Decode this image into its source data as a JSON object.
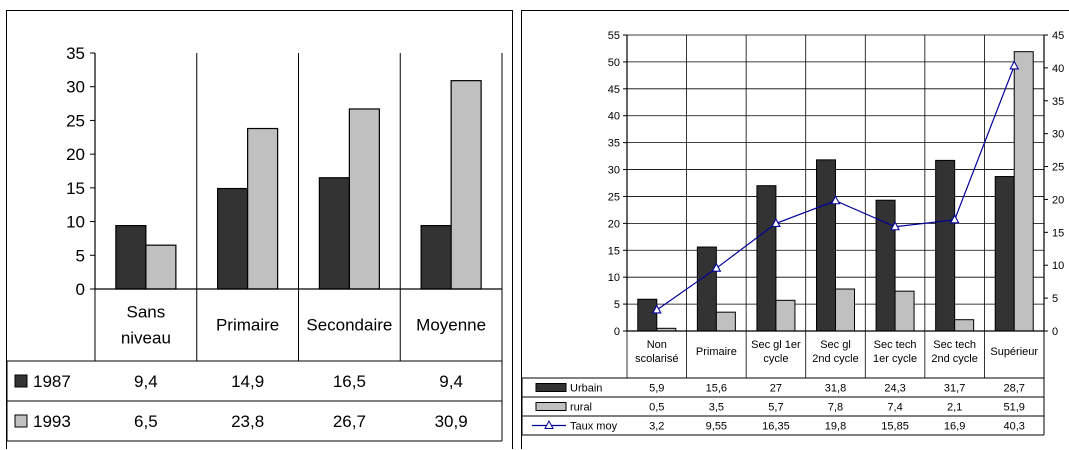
{
  "chart_data": [
    {
      "type": "bar",
      "categories": [
        [
          "Sans",
          "niveau"
        ],
        [
          "Primaire"
        ],
        [
          "Secondaire"
        ],
        [
          "Moyenne"
        ]
      ],
      "series": [
        {
          "name": "1987",
          "values": [
            9.4,
            14.9,
            16.5,
            9.4
          ],
          "labels": [
            "9,4",
            "14,9",
            "16,5",
            "9,4"
          ],
          "color": "#333333"
        },
        {
          "name": "1993",
          "values": [
            6.5,
            23.8,
            26.7,
            30.9
          ],
          "labels": [
            "6,5",
            "23,8",
            "26,7",
            "30,9"
          ],
          "color": "#c0c0c0"
        }
      ],
      "ylim": [
        0,
        35
      ],
      "yticks": [
        0,
        5,
        10,
        15,
        20,
        25,
        30,
        35
      ],
      "grid": false,
      "legend": "data-table"
    },
    {
      "type": "bar",
      "categories": [
        [
          "Non",
          "scolarisé"
        ],
        [
          "Primaire"
        ],
        [
          "Sec gl 1er",
          "cycle"
        ],
        [
          "Sec gl",
          "2nd cycle"
        ],
        [
          "Sec tech",
          "1er cycle"
        ],
        [
          "Sec tech",
          "2nd cycle"
        ],
        [
          "Supérieur"
        ]
      ],
      "series": [
        {
          "name": "Urbain",
          "kind": "bar",
          "axis": "left",
          "values": [
            5.9,
            15.6,
            27,
            31.8,
            24.3,
            31.7,
            28.7
          ],
          "labels": [
            "5,9",
            "15,6",
            "27",
            "31,8",
            "24,3",
            "31,7",
            "28,7"
          ],
          "color": "#333333"
        },
        {
          "name": "rural",
          "kind": "bar",
          "axis": "left",
          "values": [
            0.5,
            3.5,
            5.7,
            7.8,
            7.4,
            2.1,
            51.9
          ],
          "labels": [
            "0,5",
            "3,5",
            "5,7",
            "7,8",
            "7,4",
            "2,1",
            "51,9"
          ],
          "color": "#c0c0c0"
        },
        {
          "name": "Taux moy",
          "kind": "line",
          "axis": "right",
          "marker": "triangle",
          "values": [
            3.2,
            9.55,
            16.35,
            19.8,
            15.85,
            16.9,
            40.3
          ],
          "labels": [
            "3,2",
            "9,55",
            "16,35",
            "19,8",
            "15,85",
            "16,9",
            "40,3"
          ],
          "color": "#000099"
        }
      ],
      "ylim": [
        0,
        55
      ],
      "yticks": [
        0,
        5,
        10,
        15,
        20,
        25,
        30,
        35,
        40,
        45,
        50,
        55
      ],
      "y2lim": [
        0,
        45
      ],
      "y2ticks": [
        0,
        5,
        10,
        15,
        20,
        25,
        30,
        35,
        40,
        45
      ],
      "grid": true,
      "legend": "data-table"
    }
  ]
}
